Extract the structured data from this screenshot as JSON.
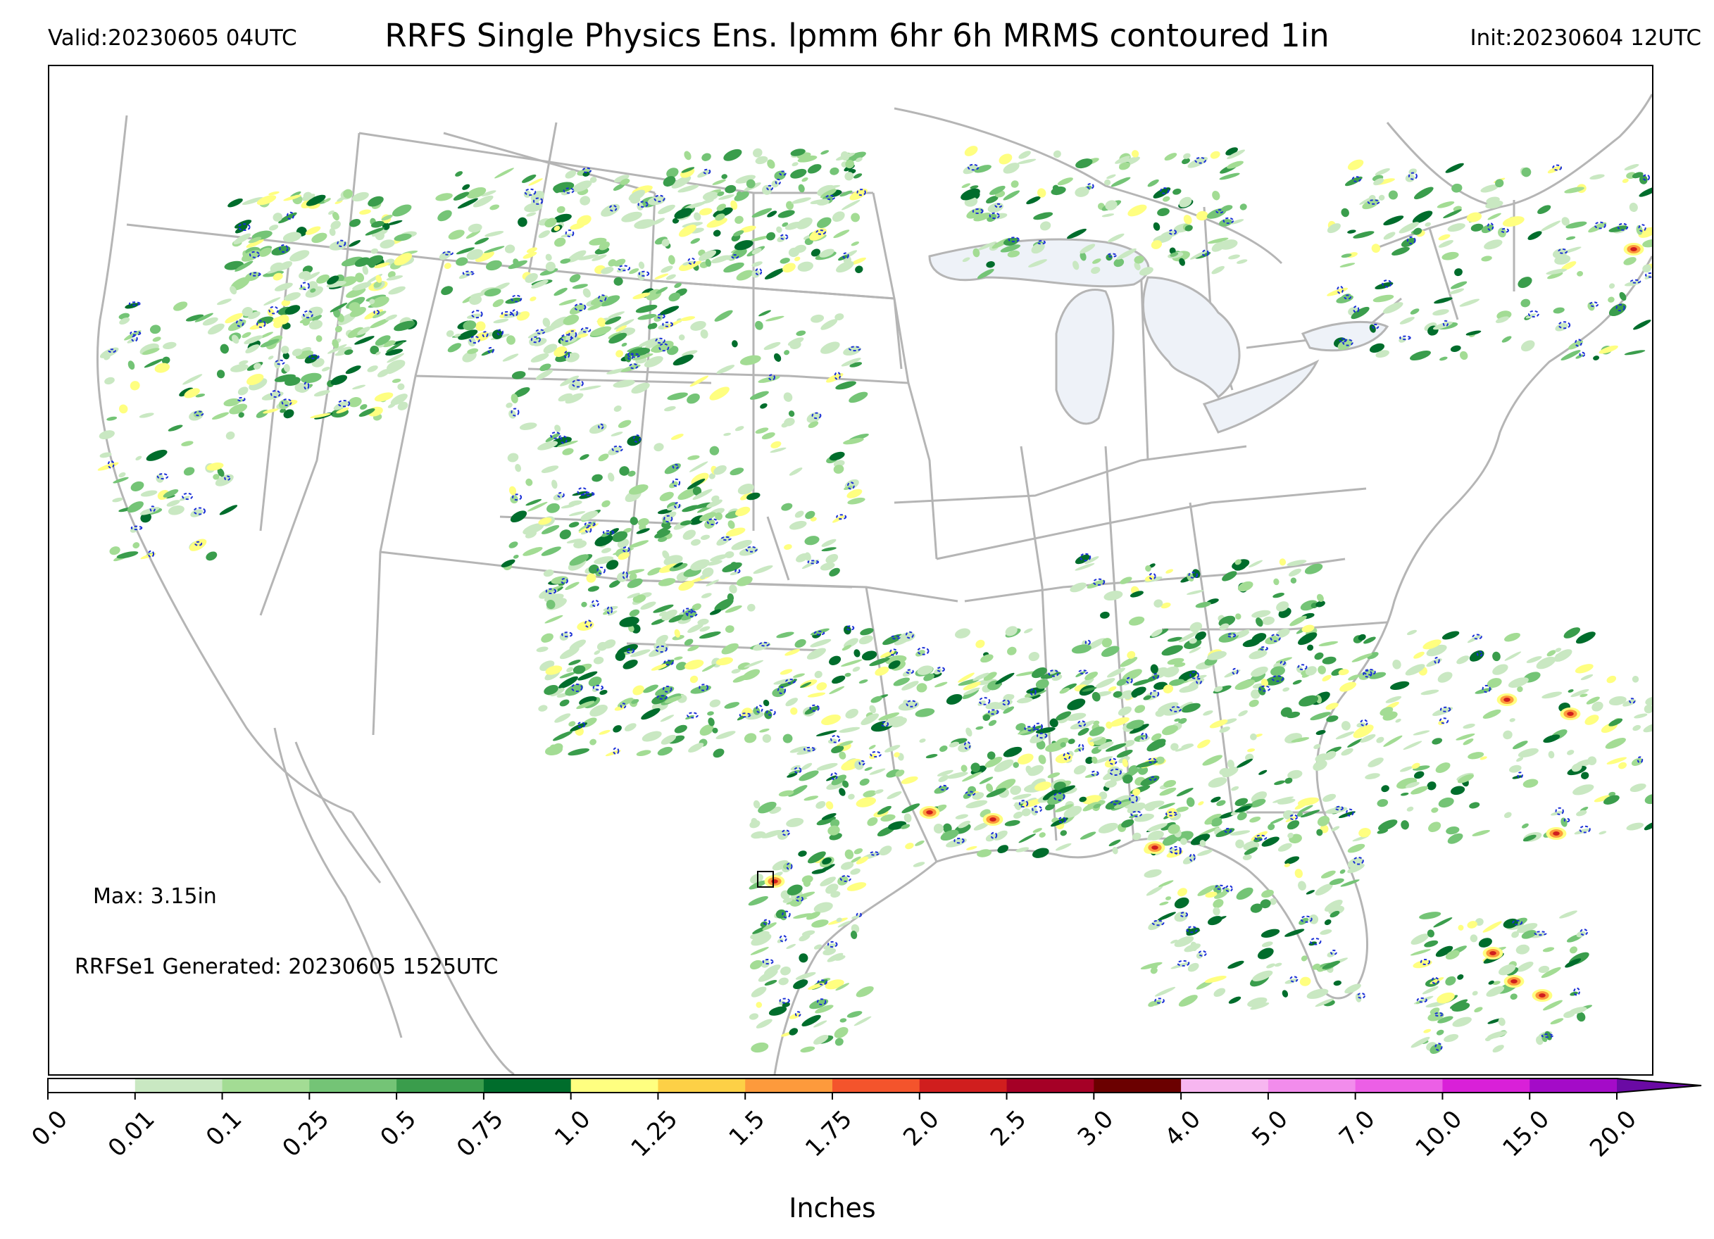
{
  "header": {
    "valid": "Valid:20230605 04UTC",
    "title": "RRFS Single Physics Ens. lpmm 6hr 6h MRMS contoured 1in",
    "init": "Init:20230604 12UTC"
  },
  "map": {
    "max_label": "Max: 3.15in",
    "generated_label": "RRFSe1 Generated: 20230605 1525UTC",
    "contour_color": "#1a2fd6",
    "border_color": "#b5b5b5",
    "lake_color": "#eef2f8"
  },
  "colorbar": {
    "label": "Inches",
    "ticks": [
      "0.0",
      "0.01",
      "0.1",
      "0.25",
      "0.5",
      "0.75",
      "1.0",
      "1.25",
      "1.5",
      "1.75",
      "2.0",
      "2.5",
      "3.0",
      "4.0",
      "5.0",
      "7.0",
      "10.0",
      "15.0",
      "20.0"
    ],
    "colors": [
      "#ffffff",
      "#c9e8c2",
      "#a3dc94",
      "#74c476",
      "#3a9d4c",
      "#006d2c",
      "#ffff80",
      "#fdd046",
      "#fd9a3c",
      "#f4542c",
      "#d01e1e",
      "#a50026",
      "#6b0000",
      "#f7b6f0",
      "#f28cec",
      "#ec5fe6",
      "#d920d8",
      "#a40bc8"
    ],
    "extend_color": "#6a0aa4"
  }
}
